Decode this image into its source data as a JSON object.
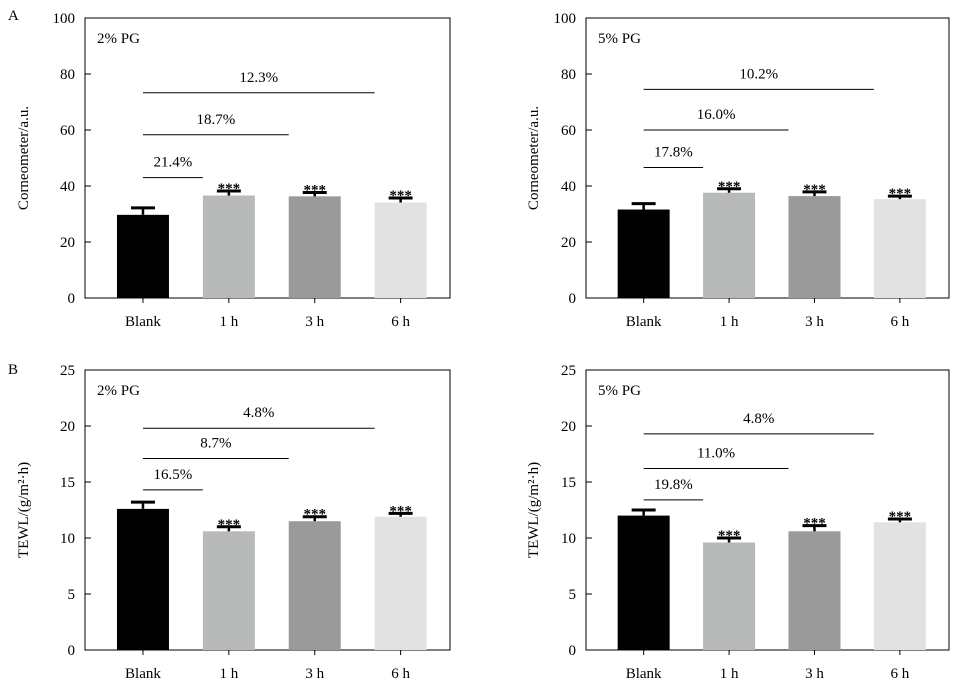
{
  "panel_labels": [
    "A",
    "B"
  ],
  "colors": {
    "Blank": "#000000",
    "1 h": "#b8bab9",
    "3 h": "#9a9a9a",
    "6 h": "#e2e2e2",
    "axis": "#000000"
  },
  "chart_data": [
    {
      "type": "bar",
      "panel": "A",
      "title": "2% PG",
      "ylabel": "Corneometer/a.u.",
      "xlabel": "",
      "ylim": [
        0,
        100
      ],
      "yticks": [
        "0",
        "20",
        "40",
        "60",
        "80",
        "100"
      ],
      "categories": [
        "Blank",
        "1 h",
        "3 h",
        "6 h"
      ],
      "values": [
        29.7,
        36.6,
        36.3,
        34.1
      ],
      "errors": [
        2.5,
        1.6,
        1.4,
        1.6
      ],
      "significance": [
        "",
        "***",
        "***",
        "***"
      ],
      "brackets": [
        {
          "to_category": "1 h",
          "y": 43,
          "label": "21.4%"
        },
        {
          "to_category": "3 h",
          "y": 58.3,
          "label": "18.7%"
        },
        {
          "to_category": "6 h",
          "y": 73.3,
          "label": "12.3%"
        }
      ]
    },
    {
      "type": "bar",
      "panel": "A",
      "title": "5% PG",
      "ylabel": "Corneometer/a.u.",
      "xlabel": "",
      "ylim": [
        0,
        100
      ],
      "yticks": [
        "0",
        "20",
        "40",
        "60",
        "80",
        "100"
      ],
      "categories": [
        "Blank",
        "1 h",
        "3 h",
        "6 h"
      ],
      "values": [
        31.6,
        37.6,
        36.4,
        35.3
      ],
      "errors": [
        2.1,
        1.4,
        1.5,
        1.1
      ],
      "significance": [
        "",
        "***",
        "***",
        "***"
      ],
      "brackets": [
        {
          "to_category": "1 h",
          "y": 46.6,
          "label": "17.8%"
        },
        {
          "to_category": "3 h",
          "y": 60,
          "label": "16.0%"
        },
        {
          "to_category": "6 h",
          "y": 74.5,
          "label": "10.2%"
        }
      ]
    },
    {
      "type": "bar",
      "panel": "B",
      "title": "2% PG",
      "ylabel": "TEWL/(g/m²·h)",
      "xlabel": "",
      "ylim": [
        0,
        25
      ],
      "yticks": [
        "0",
        "5",
        "10",
        "15",
        "20",
        "25"
      ],
      "categories": [
        "Blank",
        "1 h",
        "3 h",
        "6 h"
      ],
      "values": [
        12.6,
        10.6,
        11.5,
        11.9
      ],
      "errors": [
        0.6,
        0.4,
        0.4,
        0.3
      ],
      "significance": [
        "",
        "***",
        "***",
        "***"
      ],
      "brackets": [
        {
          "to_category": "1 h",
          "y": 14.3,
          "label": "16.5%"
        },
        {
          "to_category": "3 h",
          "y": 17.1,
          "label": "8.7%"
        },
        {
          "to_category": "6 h",
          "y": 19.8,
          "label": "4.8%"
        }
      ]
    },
    {
      "type": "bar",
      "panel": "B",
      "title": "5% PG",
      "ylabel": "TEWL/(g/m²·h)",
      "xlabel": "",
      "ylim": [
        0,
        25
      ],
      "yticks": [
        "0",
        "5",
        "10",
        "15",
        "20",
        "25"
      ],
      "categories": [
        "Blank",
        "1 h",
        "3 h",
        "6 h"
      ],
      "values": [
        12.0,
        9.6,
        10.6,
        11.4
      ],
      "errors": [
        0.5,
        0.4,
        0.5,
        0.3
      ],
      "significance": [
        "",
        "***",
        "***",
        "***"
      ],
      "brackets": [
        {
          "to_category": "1 h",
          "y": 13.4,
          "label": "19.8%"
        },
        {
          "to_category": "3 h",
          "y": 16.2,
          "label": "11.0%"
        },
        {
          "to_category": "6 h",
          "y": 19.3,
          "label": "4.8%"
        }
      ]
    }
  ]
}
